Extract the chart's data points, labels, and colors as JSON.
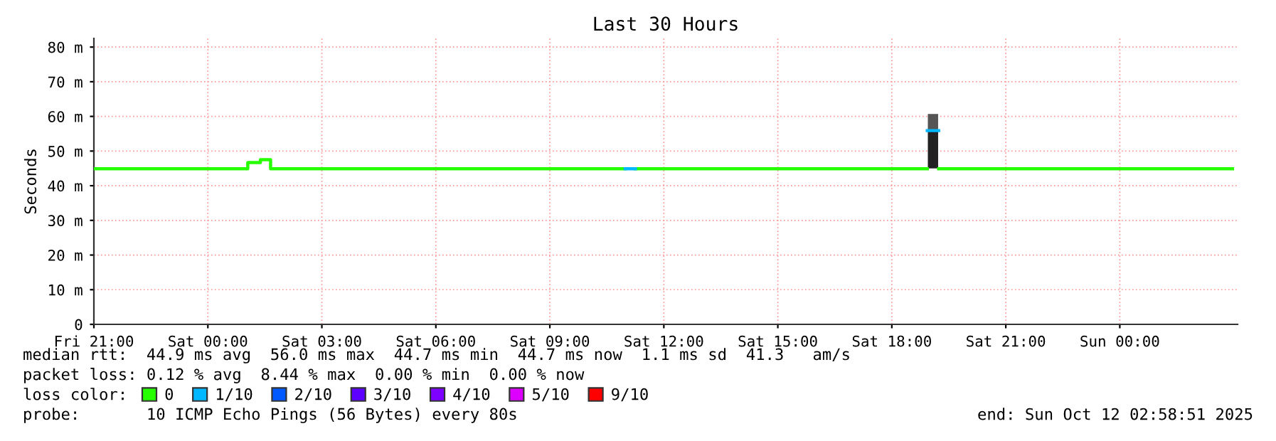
{
  "chart_data": {
    "type": "line",
    "title": "Last 30 Hours",
    "ylabel": "Seconds",
    "legend_title": "loss color:",
    "series": [
      {
        "type": "bar",
        "color": "#222222",
        "x": [
          "2025-10-11T19:05"
        ],
        "base": [
          45
        ],
        "values": [
          11.0
        ]
      },
      {
        "type": "bar",
        "color": "#555555",
        "x": [
          "2025-10-11T19:05"
        ],
        "base": [
          56
        ],
        "values": [
          4.7
        ]
      },
      {
        "name": "0",
        "color": "#26ff00",
        "x": [
          "2025-10-10T21:00",
          "2025-10-11T01:03",
          "2025-10-11T01:03",
          "2025-10-11T01:23",
          "2025-10-11T01:23",
          "2025-10-11T01:39",
          "2025-10-11T01:39",
          "2025-10-11T10:59",
          "2025-10-11T11:07",
          "2025-10-11T11:15",
          "2025-10-11T18:56",
          "2025-10-11T19:05",
          "2025-10-11T19:14",
          "2025-10-12T02:58"
        ],
        "values": [
          44.9,
          44.9,
          46.7,
          46.7,
          47.5,
          47.5,
          44.9,
          44.9,
          null,
          44.9,
          44.9,
          null,
          44.9,
          44.9
        ]
      },
      {
        "name": "1/10",
        "color": "#00b8ff",
        "x": [
          "2025-10-11T10:59",
          "2025-10-11T11:15",
          "2025-10-11T15:00",
          "2025-10-11T18:56",
          "2025-10-11T19:14"
        ],
        "values": [
          44.9,
          44.9,
          null,
          55.9,
          55.9
        ]
      },
      {
        "name": "2/10",
        "color": "#0059ff"
      },
      {
        "name": "3/10",
        "color": "#5e00ff"
      },
      {
        "name": "4/10",
        "color": "#7e00ff"
      },
      {
        "name": "5/10",
        "color": "#dd00ff"
      },
      {
        "name": "9/10",
        "color": "#ff0000"
      }
    ],
    "xlim": [
      "2025-10-10T21:00",
      "2025-10-12T03:06"
    ],
    "ylim": [
      0,
      82.5
    ],
    "xticks": [
      {
        "value": "2025-10-10T21:00",
        "label": "Fri 21:00"
      },
      {
        "value": "2025-10-11T00:00",
        "label": "Sat 00:00"
      },
      {
        "value": "2025-10-11T03:00",
        "label": "Sat 03:00"
      },
      {
        "value": "2025-10-11T06:00",
        "label": "Sat 06:00"
      },
      {
        "value": "2025-10-11T09:00",
        "label": "Sat 09:00"
      },
      {
        "value": "2025-10-11T12:00",
        "label": "Sat 12:00"
      },
      {
        "value": "2025-10-11T15:00",
        "label": "Sat 15:00"
      },
      {
        "value": "2025-10-11T18:00",
        "label": "Sat 18:00"
      },
      {
        "value": "2025-10-11T21:00",
        "label": "Sat 21:00"
      },
      {
        "value": "2025-10-12T00:00",
        "label": "Sun 00:00"
      }
    ],
    "yticks": [
      0,
      {
        "value": 10,
        "label": "10 m"
      },
      {
        "value": 20,
        "label": "20 m"
      },
      {
        "value": 30,
        "label": "30 m"
      },
      {
        "value": 40,
        "label": "40 m"
      },
      {
        "value": 50,
        "label": "50 m"
      },
      {
        "value": 60,
        "label": "60 m"
      },
      {
        "value": 70,
        "label": "70 m"
      },
      {
        "value": 80,
        "label": "80 m"
      }
    ],
    "grid": true,
    "legend": "bottom",
    "line_style": "solid",
    "annotations": [
      "median rtt:  44.9 ms avg  56.0 ms max  44.7 ms min  44.7 ms now  1.1 ms sd  41.3   am/s",
      "packet loss: 0.12 % avg  8.44 % max  0.00 % min  0.00 % now",
      "probe:       10 ICMP Echo Pings (56 Bytes) every 80s",
      "end: Sun Oct 12 02:58:51 2025"
    ]
  }
}
